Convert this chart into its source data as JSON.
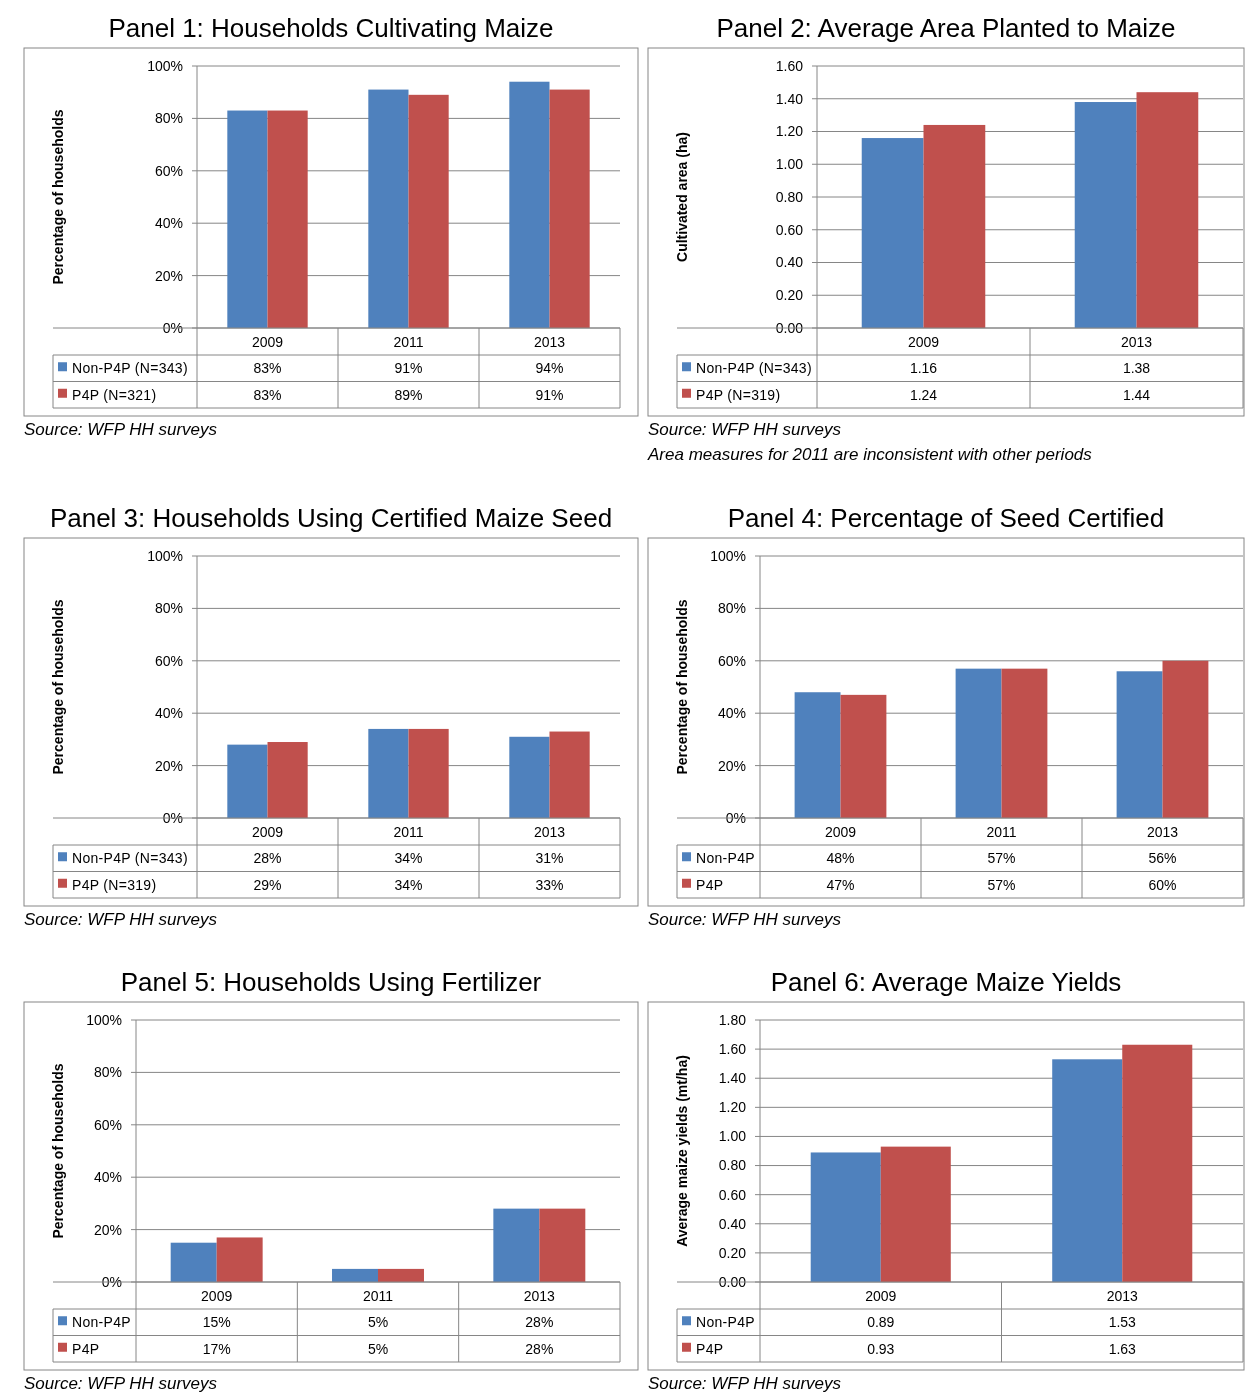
{
  "chart_data": [
    {
      "type": "bar",
      "title": "Panel 1: Households Cultivating Maize",
      "ylabel": "Percentage of households",
      "categories": [
        "2009",
        "2011",
        "2013"
      ],
      "series": [
        {
          "name": "Non-P4P (N=343)",
          "color": "#4f81bd",
          "values": [
            83,
            91,
            94
          ],
          "value_labels": [
            "83%",
            "91%",
            "94%"
          ]
        },
        {
          "name": "P4P (N=321)",
          "color": "#c0504d",
          "values": [
            83,
            89,
            91
          ],
          "value_labels": [
            "83%",
            "89%",
            "91%"
          ]
        }
      ],
      "ylim": [
        0,
        100
      ],
      "yticks": [
        {
          "value": 0,
          "label": "0%"
        },
        {
          "value": 20,
          "label": "20%"
        },
        {
          "value": 40,
          "label": "40%"
        },
        {
          "value": 60,
          "label": "60%"
        },
        {
          "value": 80,
          "label": "80%"
        },
        {
          "value": 100,
          "label": "100%"
        }
      ],
      "grid": "y",
      "legend": "bottom",
      "annotations": [
        "Source: WFP HH surveys"
      ]
    },
    {
      "type": "bar",
      "title": "Panel 2: Average Area Planted to Maize",
      "ylabel": "Cultivated area (ha)",
      "categories": [
        "2009",
        "2013"
      ],
      "series": [
        {
          "name": "Non-P4P (N=343)",
          "color": "#4f81bd",
          "values": [
            1.16,
            1.38
          ],
          "value_labels": [
            "1.16",
            "1.38"
          ]
        },
        {
          "name": "P4P (N=319)",
          "color": "#c0504d",
          "values": [
            1.24,
            1.44
          ],
          "value_labels": [
            "1.24",
            "1.44"
          ]
        }
      ],
      "ylim": [
        0,
        1.6
      ],
      "yticks": [
        {
          "value": 0,
          "label": "0.00"
        },
        {
          "value": 0.2,
          "label": "0.20"
        },
        {
          "value": 0.4,
          "label": "0.40"
        },
        {
          "value": 0.6,
          "label": "0.60"
        },
        {
          "value": 0.8,
          "label": "0.80"
        },
        {
          "value": 1,
          "label": "1.00"
        },
        {
          "value": 1.2,
          "label": "1.20"
        },
        {
          "value": 1.4,
          "label": "1.40"
        },
        {
          "value": 1.6,
          "label": "1.60"
        }
      ],
      "grid": "y",
      "legend": "bottom",
      "annotations": [
        "Source: WFP HH surveys",
        "Area measures for 2011 are inconsistent with other periods"
      ]
    },
    {
      "type": "bar",
      "title": "Panel 3: Households Using Certified Maize Seed",
      "ylabel": "Percentage of households",
      "categories": [
        "2009",
        "2011",
        "2013"
      ],
      "series": [
        {
          "name": "Non-P4P (N=343)",
          "color": "#4f81bd",
          "values": [
            28,
            34,
            31
          ],
          "value_labels": [
            "28%",
            "34%",
            "31%"
          ]
        },
        {
          "name": "P4P (N=319)",
          "color": "#c0504d",
          "values": [
            29,
            34,
            33
          ],
          "value_labels": [
            "29%",
            "34%",
            "33%"
          ]
        }
      ],
      "ylim": [
        0,
        100
      ],
      "yticks": [
        {
          "value": 0,
          "label": "0%"
        },
        {
          "value": 20,
          "label": "20%"
        },
        {
          "value": 40,
          "label": "40%"
        },
        {
          "value": 60,
          "label": "60%"
        },
        {
          "value": 80,
          "label": "80%"
        },
        {
          "value": 100,
          "label": "100%"
        }
      ],
      "grid": "y",
      "legend": "bottom",
      "annotations": [
        "Source: WFP HH surveys"
      ]
    },
    {
      "type": "bar",
      "title": "Panel 4: Percentage of Seed Certified",
      "ylabel": "Percentage of households",
      "categories": [
        "2009",
        "2011",
        "2013"
      ],
      "series": [
        {
          "name": "Non-P4P",
          "color": "#4f81bd",
          "values": [
            48,
            57,
            56
          ],
          "value_labels": [
            "48%",
            "57%",
            "56%"
          ]
        },
        {
          "name": "P4P",
          "color": "#c0504d",
          "values": [
            47,
            57,
            60
          ],
          "value_labels": [
            "47%",
            "57%",
            "60%"
          ]
        }
      ],
      "ylim": [
        0,
        100
      ],
      "yticks": [
        {
          "value": 0,
          "label": "0%"
        },
        {
          "value": 20,
          "label": "20%"
        },
        {
          "value": 40,
          "label": "40%"
        },
        {
          "value": 60,
          "label": "60%"
        },
        {
          "value": 80,
          "label": "80%"
        },
        {
          "value": 100,
          "label": "100%"
        }
      ],
      "grid": "y",
      "legend": "bottom",
      "annotations": [
        "Source: WFP HH surveys"
      ]
    },
    {
      "type": "bar",
      "title": "Panel 5: Households Using Fertilizer",
      "ylabel": "Percentage of households",
      "categories": [
        "2009",
        "2011",
        "2013"
      ],
      "series": [
        {
          "name": "Non-P4P",
          "color": "#4f81bd",
          "values": [
            15,
            5,
            28
          ],
          "value_labels": [
            "15%",
            "5%",
            "28%"
          ]
        },
        {
          "name": "P4P",
          "color": "#c0504d",
          "values": [
            17,
            5,
            28
          ],
          "value_labels": [
            "17%",
            "5%",
            "28%"
          ]
        }
      ],
      "ylim": [
        0,
        100
      ],
      "yticks": [
        {
          "value": 0,
          "label": "0%"
        },
        {
          "value": 20,
          "label": "20%"
        },
        {
          "value": 40,
          "label": "40%"
        },
        {
          "value": 60,
          "label": "60%"
        },
        {
          "value": 80,
          "label": "80%"
        },
        {
          "value": 100,
          "label": "100%"
        }
      ],
      "grid": "y",
      "legend": "bottom",
      "annotations": [
        "Source: WFP HH surveys"
      ]
    },
    {
      "type": "bar",
      "title": "Panel 6: Average Maize Yields",
      "ylabel": "Average maize yields (mt/ha)",
      "categories": [
        "2009",
        "2013"
      ],
      "series": [
        {
          "name": "Non-P4P",
          "color": "#4f81bd",
          "values": [
            0.89,
            1.53
          ],
          "value_labels": [
            "0.89",
            "1.53"
          ]
        },
        {
          "name": "P4P",
          "color": "#c0504d",
          "values": [
            0.93,
            1.63
          ],
          "value_labels": [
            "0.93",
            "1.63"
          ]
        }
      ],
      "ylim": [
        0,
        1.8
      ],
      "yticks": [
        {
          "value": 0,
          "label": "0.00"
        },
        {
          "value": 0.2,
          "label": "0.20"
        },
        {
          "value": 0.4,
          "label": "0.40"
        },
        {
          "value": 0.6,
          "label": "0.60"
        },
        {
          "value": 0.8,
          "label": "0.80"
        },
        {
          "value": 1,
          "label": "1.00"
        },
        {
          "value": 1.2,
          "label": "1.20"
        },
        {
          "value": 1.4,
          "label": "1.40"
        },
        {
          "value": 1.6,
          "label": "1.60"
        },
        {
          "value": 1.8,
          "label": "1.80"
        }
      ],
      "grid": "y",
      "legend": "bottom",
      "annotations": [
        "Source: WFP HH surveys"
      ]
    }
  ]
}
